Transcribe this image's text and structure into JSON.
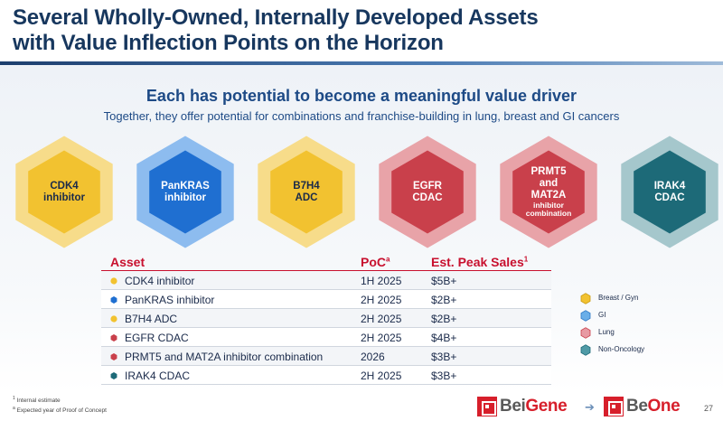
{
  "slide": {
    "title_line1": "Several Wholly-Owned, Internally Developed Assets",
    "title_line2": "with Value Inflection Points on the Horizon",
    "subheading": "Each has potential to become a meaningful value driver",
    "subtext": "Together, they offer potential for combinations and franchise-building in lung, breast and GI cancers",
    "page_number": "27"
  },
  "hexagons": [
    {
      "lines": [
        "CDK4",
        "inhibitor"
      ],
      "small": "",
      "category": "breast-gyn",
      "fill": "#f2c230",
      "ring": "#f7dc8a",
      "text_color": "#1a2a4a"
    },
    {
      "lines": [
        "PanKRAS",
        "inhibitor"
      ],
      "small": "",
      "category": "gi",
      "fill": "#1f6fd1",
      "ring": "#8dbcef",
      "text_color": "#ffffff"
    },
    {
      "lines": [
        "B7H4",
        "ADC"
      ],
      "small": "",
      "category": "breast-gyn",
      "fill": "#f2c230",
      "ring": "#f7dc8a",
      "text_color": "#1a2a4a"
    },
    {
      "lines": [
        "EGFR",
        "CDAC"
      ],
      "small": "",
      "category": "lung",
      "fill": "#c9404b",
      "ring": "#e8a3a8",
      "text_color": "#ffffff"
    },
    {
      "lines": [
        "PRMT5",
        "and",
        "MAT2A"
      ],
      "small": "inhibitor combination",
      "category": "lung",
      "fill": "#c9404b",
      "ring": "#e8a3a8",
      "text_color": "#ffffff"
    },
    {
      "lines": [
        "IRAK4",
        "CDAC"
      ],
      "small": "",
      "category": "non-oncology",
      "fill": "#1d6a78",
      "ring": "#a5c7cc",
      "text_color": "#ffffff"
    }
  ],
  "table": {
    "headers": {
      "asset": "Asset",
      "poc": "PoC",
      "poc_sup": "a",
      "sales": "Est. Peak Sales",
      "sales_sup": "1"
    },
    "rows": [
      {
        "asset": "CDK4 inhibitor",
        "poc": "1H 2025",
        "sales": "$5B+",
        "marker": "circle",
        "color": "#f2c230"
      },
      {
        "asset": "PanKRAS inhibitor",
        "poc": "2H 2025",
        "sales": "$2B+",
        "marker": "hexagon",
        "color": "#1f6fd1"
      },
      {
        "asset": "B7H4 ADC",
        "poc": "2H 2025",
        "sales": "$2B+",
        "marker": "circle",
        "color": "#f2c230"
      },
      {
        "asset": "EGFR CDAC",
        "poc": "2H 2025",
        "sales": "$4B+",
        "marker": "hexagon",
        "color": "#c9404b"
      },
      {
        "asset": "PRMT5 and MAT2A inhibitor combination",
        "poc": "2026",
        "sales": "$3B+",
        "marker": "hexagon",
        "color": "#c9404b"
      },
      {
        "asset": "IRAK4 CDAC",
        "poc": "2H 2025",
        "sales": "$3B+",
        "marker": "hexagon",
        "color": "#1d6a78"
      }
    ]
  },
  "legend": [
    {
      "label": "Breast / Gyn",
      "fill": "#f2c230",
      "stroke": "#c99a12"
    },
    {
      "label": "GI",
      "fill": "#6aaee8",
      "stroke": "#2f78c4"
    },
    {
      "label": "Lung",
      "fill": "#e79aa3",
      "stroke": "#c9404b"
    },
    {
      "label": "Non-Oncology",
      "fill": "#4f9aa6",
      "stroke": "#1d6a78"
    }
  ],
  "footnotes": [
    {
      "marker": "1",
      "text": "Internal estimate"
    },
    {
      "marker": "a",
      "text": "Expected year of Proof of Concept"
    }
  ],
  "logos": {
    "from_prefix": "Bei",
    "from_suffix": "Gene",
    "to_prefix": "Be",
    "to_suffix": "One"
  }
}
